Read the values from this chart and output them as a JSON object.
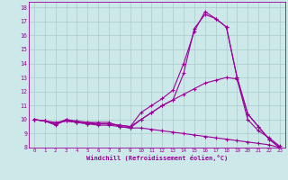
{
  "xlabel": "Windchill (Refroidissement éolien,°C)",
  "xlim": [
    -0.5,
    23.5
  ],
  "ylim": [
    8,
    18.4
  ],
  "xticks": [
    0,
    1,
    2,
    3,
    4,
    5,
    6,
    7,
    8,
    9,
    10,
    11,
    12,
    13,
    14,
    15,
    16,
    17,
    18,
    19,
    20,
    21,
    22,
    23
  ],
  "yticks": [
    8,
    9,
    10,
    11,
    12,
    13,
    14,
    15,
    16,
    17,
    18
  ],
  "bg_color": "#cce8e8",
  "line_color": "#990099",
  "grid_color": "#aacccc",
  "series": [
    {
      "x": [
        0,
        1,
        2,
        3,
        4,
        5,
        6,
        7,
        8,
        9,
        10,
        11,
        12,
        13,
        14,
        15,
        16,
        17,
        18,
        19,
        20,
        21,
        22,
        23
      ],
      "y": [
        10,
        9.9,
        9.6,
        10,
        9.9,
        9.8,
        9.8,
        9.8,
        9.5,
        9.4,
        10,
        10.5,
        11,
        11.4,
        13.3,
        16.5,
        17.5,
        17.2,
        16.6,
        13.0,
        10.4,
        9.5,
        8.6,
        8.0
      ]
    },
    {
      "x": [
        0,
        1,
        2,
        3,
        4,
        5,
        6,
        7,
        8,
        9,
        10,
        11,
        12,
        13,
        14,
        15,
        16,
        17,
        18,
        19,
        20,
        21,
        22,
        23
      ],
      "y": [
        10,
        9.9,
        9.7,
        10,
        9.8,
        9.8,
        9.7,
        9.7,
        9.6,
        9.5,
        10.5,
        11.0,
        11.5,
        12.1,
        14.0,
        16.3,
        17.7,
        17.2,
        16.6,
        13.0,
        10.4,
        9.5,
        8.6,
        8.0
      ]
    },
    {
      "x": [
        0,
        1,
        2,
        3,
        4,
        5,
        6,
        7,
        8,
        9,
        10,
        11,
        12,
        13,
        14,
        15,
        16,
        17,
        18,
        19,
        20,
        21,
        22,
        23
      ],
      "y": [
        10,
        9.9,
        9.7,
        9.9,
        9.8,
        9.7,
        9.7,
        9.7,
        9.6,
        9.5,
        10,
        10.5,
        11,
        11.4,
        11.8,
        12.2,
        12.6,
        12.8,
        13.0,
        12.9,
        10.0,
        9.2,
        8.7,
        8.1
      ]
    },
    {
      "x": [
        0,
        1,
        2,
        3,
        4,
        5,
        6,
        7,
        8,
        9,
        10,
        11,
        12,
        13,
        14,
        15,
        16,
        17,
        18,
        19,
        20,
        21,
        22,
        23
      ],
      "y": [
        10,
        9.9,
        9.8,
        9.9,
        9.8,
        9.7,
        9.6,
        9.6,
        9.5,
        9.4,
        9.4,
        9.3,
        9.2,
        9.1,
        9.0,
        8.9,
        8.8,
        8.7,
        8.6,
        8.5,
        8.4,
        8.3,
        8.2,
        8.0
      ]
    }
  ]
}
